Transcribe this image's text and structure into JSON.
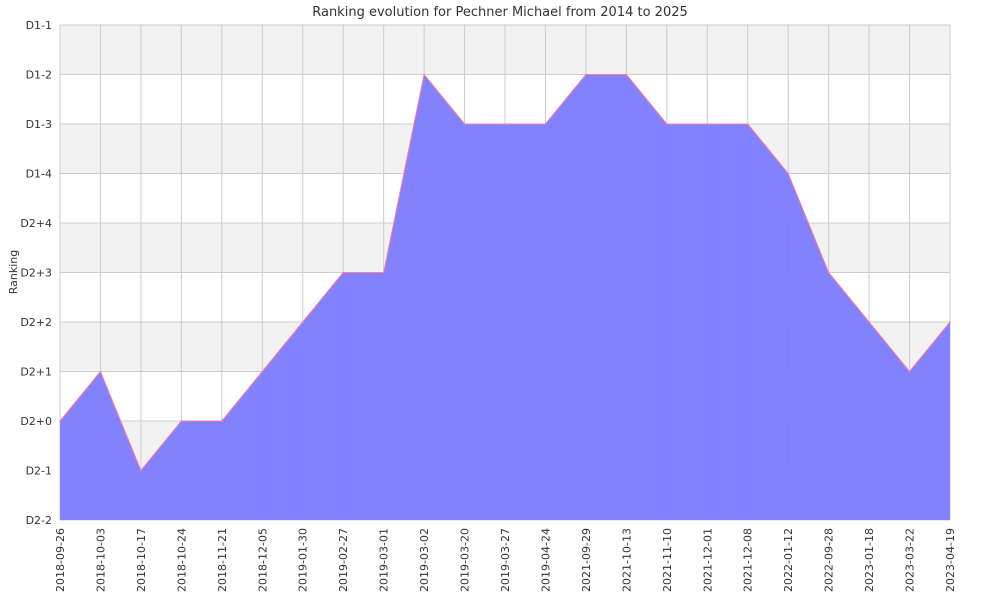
{
  "chart_data": {
    "type": "area",
    "title": "Ranking evolution for Pechner Michael from 2014 to 2025",
    "xlabel": "",
    "ylabel": "Ranking",
    "y_tick_labels": [
      "D2-2",
      "D2-1",
      "D2+0",
      "D2+1",
      "D2+2",
      "D2+3",
      "D2+4",
      "D1-4",
      "D1-3",
      "D1-2",
      "D1-1"
    ],
    "ylim": [
      0,
      10
    ],
    "grid": true,
    "x": [
      "2018-09-26",
      "2018-10-03",
      "2018-10-17",
      "2018-10-24",
      "2018-11-21",
      "2018-12-05",
      "2019-01-30",
      "2019-02-27",
      "2019-03-01",
      "2019-03-02",
      "2019-03-20",
      "2019-03-27",
      "2019-04-24",
      "2021-09-29",
      "2021-10-13",
      "2021-11-10",
      "2021-12-01",
      "2021-12-08",
      "2022-01-12",
      "2022-09-28",
      "2023-01-18",
      "2023-03-22",
      "2023-04-19"
    ],
    "series": [
      {
        "values": [
          2,
          3,
          1,
          2,
          2,
          3,
          4,
          5,
          5,
          9,
          8,
          8,
          8,
          9,
          9,
          8,
          8,
          8,
          7,
          5,
          4,
          3,
          4
        ]
      }
    ],
    "colors": {
      "fill": "#7b7bff",
      "line": "#ff7b9c",
      "band": "#f2f2f2",
      "grid": "#cccccc"
    }
  }
}
